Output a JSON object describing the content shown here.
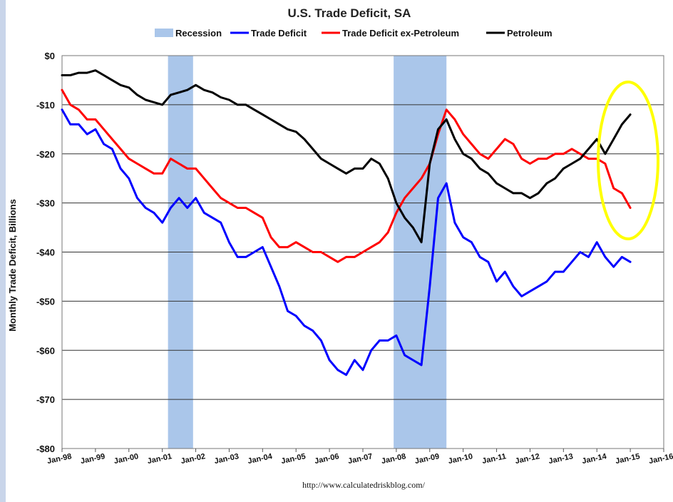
{
  "chart_data": {
    "type": "line",
    "title": "U.S. Trade Deficit, SA",
    "ylabel": "Monthly Trade Deficit, Billions",
    "source": "http://www.calculatedriskblog.com/",
    "ylim": [
      -80,
      0
    ],
    "yticks": [
      0,
      -10,
      -20,
      -30,
      -40,
      -50,
      -60,
      -70,
      -80
    ],
    "ytick_labels": [
      "$0",
      "-$10",
      "-$20",
      "-$30",
      "-$40",
      "-$50",
      "-$60",
      "-$70",
      "-$80"
    ],
    "xlim": [
      1998.0,
      2016.0
    ],
    "xticks": [
      1998,
      1999,
      2000,
      2001,
      2002,
      2003,
      2004,
      2005,
      2006,
      2007,
      2008,
      2009,
      2010,
      2011,
      2012,
      2013,
      2014,
      2015,
      2016
    ],
    "xtick_labels": [
      "Jan-98",
      "Jan-99",
      "Jan-00",
      "Jan-01",
      "Jan-02",
      "Jan-03",
      "Jan-04",
      "Jan-05",
      "Jan-06",
      "Jan-07",
      "Jan-08",
      "Jan-09",
      "Jan-10",
      "Jan-11",
      "Jan-12",
      "Jan-13",
      "Jan-14",
      "Jan-15",
      "Jan-16"
    ],
    "grid": "horizontal",
    "legend_position": "top",
    "recessions": [
      [
        2001.17,
        2001.92
      ],
      [
        2007.92,
        2009.5
      ]
    ],
    "recession_label": "Recession",
    "annotation": "yellow ellipse highlighting 2014-2015",
    "series": [
      {
        "name": "Trade Deficit",
        "color": "#0000ff",
        "x": [
          1998.0,
          1998.25,
          1998.5,
          1998.75,
          1999.0,
          1999.25,
          1999.5,
          1999.75,
          2000.0,
          2000.25,
          2000.5,
          2000.75,
          2001.0,
          2001.25,
          2001.5,
          2001.75,
          2002.0,
          2002.25,
          2002.5,
          2002.75,
          2003.0,
          2003.25,
          2003.5,
          2003.75,
          2004.0,
          2004.25,
          2004.5,
          2004.75,
          2005.0,
          2005.25,
          2005.5,
          2005.75,
          2006.0,
          2006.25,
          2006.5,
          2006.75,
          2007.0,
          2007.25,
          2007.5,
          2007.75,
          2008.0,
          2008.25,
          2008.5,
          2008.75,
          2009.0,
          2009.25,
          2009.5,
          2009.75,
          2010.0,
          2010.25,
          2010.5,
          2010.75,
          2011.0,
          2011.25,
          2011.5,
          2011.75,
          2012.0,
          2012.25,
          2012.5,
          2012.75,
          2013.0,
          2013.25,
          2013.5,
          2013.75,
          2014.0,
          2014.25,
          2014.5,
          2014.75,
          2015.0
        ],
        "values": [
          -11,
          -14,
          -14,
          -16,
          -15,
          -18,
          -19,
          -23,
          -25,
          -29,
          -31,
          -32,
          -34,
          -31,
          -29,
          -31,
          -29,
          -32,
          -33,
          -34,
          -38,
          -41,
          -41,
          -40,
          -39,
          -43,
          -47,
          -52,
          -53,
          -55,
          -56,
          -58,
          -62,
          -64,
          -65,
          -62,
          -64,
          -60,
          -58,
          -58,
          -57,
          -61,
          -62,
          -63,
          -47,
          -29,
          -26,
          -34,
          -37,
          -38,
          -41,
          -42,
          -46,
          -44,
          -47,
          -49,
          -48,
          -47,
          -46,
          -44,
          -44,
          -42,
          -40,
          -41,
          -38,
          -41,
          -43,
          -41,
          -42
        ]
      },
      {
        "name": "Trade Deficit ex-Petroleum",
        "color": "#ff0000",
        "x": [
          1998.0,
          1998.25,
          1998.5,
          1998.75,
          1999.0,
          1999.25,
          1999.5,
          1999.75,
          2000.0,
          2000.25,
          2000.5,
          2000.75,
          2001.0,
          2001.25,
          2001.5,
          2001.75,
          2002.0,
          2002.25,
          2002.5,
          2002.75,
          2003.0,
          2003.25,
          2003.5,
          2003.75,
          2004.0,
          2004.25,
          2004.5,
          2004.75,
          2005.0,
          2005.25,
          2005.5,
          2005.75,
          2006.0,
          2006.25,
          2006.5,
          2006.75,
          2007.0,
          2007.25,
          2007.5,
          2007.75,
          2008.0,
          2008.25,
          2008.5,
          2008.75,
          2009.0,
          2009.25,
          2009.5,
          2009.75,
          2010.0,
          2010.25,
          2010.5,
          2010.75,
          2011.0,
          2011.25,
          2011.5,
          2011.75,
          2012.0,
          2012.25,
          2012.5,
          2012.75,
          2013.0,
          2013.25,
          2013.5,
          2013.75,
          2014.0,
          2014.25,
          2014.5,
          2014.75,
          2015.0
        ],
        "values": [
          -7,
          -10,
          -11,
          -13,
          -13,
          -15,
          -17,
          -19,
          -21,
          -22,
          -23,
          -24,
          -24,
          -21,
          -22,
          -23,
          -23,
          -25,
          -27,
          -29,
          -30,
          -31,
          -31,
          -32,
          -33,
          -37,
          -39,
          -39,
          -38,
          -39,
          -40,
          -40,
          -41,
          -42,
          -41,
          -41,
          -40,
          -39,
          -38,
          -36,
          -32,
          -29,
          -27,
          -25,
          -22,
          -16,
          -11,
          -13,
          -16,
          -18,
          -20,
          -21,
          -19,
          -17,
          -18,
          -21,
          -22,
          -21,
          -21,
          -20,
          -20,
          -19,
          -20,
          -21,
          -21,
          -22,
          -27,
          -28,
          -31
        ]
      },
      {
        "name": "Petroleum",
        "color": "#000000",
        "x": [
          1998.0,
          1998.25,
          1998.5,
          1998.75,
          1999.0,
          1999.25,
          1999.5,
          1999.75,
          2000.0,
          2000.25,
          2000.5,
          2000.75,
          2001.0,
          2001.25,
          2001.5,
          2001.75,
          2002.0,
          2002.25,
          2002.5,
          2002.75,
          2003.0,
          2003.25,
          2003.5,
          2003.75,
          2004.0,
          2004.25,
          2004.5,
          2004.75,
          2005.0,
          2005.25,
          2005.5,
          2005.75,
          2006.0,
          2006.25,
          2006.5,
          2006.75,
          2007.0,
          2007.25,
          2007.5,
          2007.75,
          2008.0,
          2008.25,
          2008.5,
          2008.75,
          2009.0,
          2009.25,
          2009.5,
          2009.75,
          2010.0,
          2010.25,
          2010.5,
          2010.75,
          2011.0,
          2011.25,
          2011.5,
          2011.75,
          2012.0,
          2012.25,
          2012.5,
          2012.75,
          2013.0,
          2013.25,
          2013.5,
          2013.75,
          2014.0,
          2014.25,
          2014.5,
          2014.75,
          2015.0
        ],
        "values": [
          -4,
          -4,
          -3.5,
          -3.5,
          -3,
          -4,
          -5,
          -6,
          -6.5,
          -8,
          -9,
          -9.5,
          -10,
          -8,
          -7.5,
          -7,
          -6,
          -7,
          -7.5,
          -8.5,
          -9,
          -10,
          -10,
          -11,
          -12,
          -13,
          -14,
          -15,
          -15.5,
          -17,
          -19,
          -21,
          -22,
          -23,
          -24,
          -23,
          -23,
          -21,
          -22,
          -25,
          -30,
          -33,
          -35,
          -38,
          -22,
          -15,
          -13,
          -17,
          -20,
          -21,
          -23,
          -24,
          -26,
          -27,
          -28,
          -28,
          -29,
          -28,
          -26,
          -25,
          -23,
          -22,
          -21,
          -19,
          -17,
          -20,
          -17,
          -14,
          -12
        ]
      }
    ]
  }
}
